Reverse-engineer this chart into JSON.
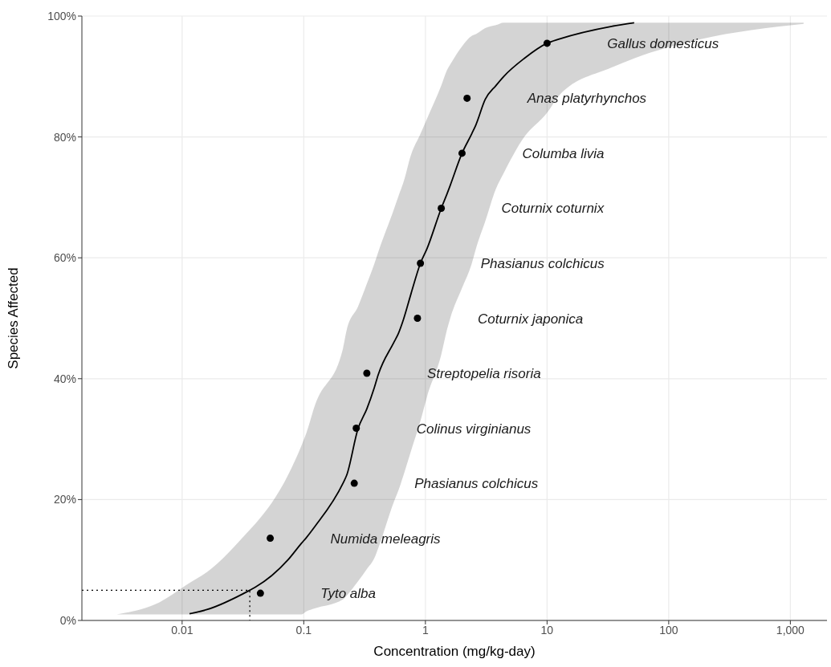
{
  "chart_data": {
    "type": "scatter",
    "xlabel": "Concentration (mg/kg-day)",
    "ylabel": "Species Affected",
    "log": "x",
    "grid": true,
    "legend": false,
    "marker": "circle",
    "xlim": [
      0.0015,
      2000
    ],
    "xticks": [
      0.01,
      0.1,
      1,
      10,
      100,
      {
        "value": 1000,
        "label": "1,000"
      }
    ],
    "ylim": [
      0,
      100
    ],
    "yticks": [
      {
        "value": 0,
        "label": "0%"
      },
      {
        "value": 20,
        "label": "20%"
      },
      {
        "value": 40,
        "label": "40%"
      },
      {
        "value": 60,
        "label": "60%"
      },
      {
        "value": 80,
        "label": "80%"
      },
      {
        "value": 100,
        "label": "100%"
      }
    ],
    "series": [
      {
        "type": "line",
        "color": "#000000",
        "line_style": "solid",
        "marker": "none",
        "x": [
          0.0029,
          0.0065,
          0.0115,
          0.016,
          0.036,
          0.04,
          0.074,
          0.096,
          0.105,
          0.123,
          0.21,
          0.225,
          0.28,
          0.33,
          0.38,
          0.41,
          0.55,
          0.6,
          0.66,
          0.76,
          0.91,
          1.03,
          1.35,
          1.5,
          1.6,
          2.0,
          2.4,
          2.6,
          3.1,
          3.8,
          4.4,
          6.5,
          10,
          12.6,
          34,
          52,
          178,
          1285
        ],
        "values": [
          null,
          null,
          1.1,
          1.8,
          5,
          5.5,
          10,
          12.8,
          13.7,
          15.5,
          22.7,
          24,
          31.8,
          35,
          38.5,
          40.7,
          46,
          47.5,
          49.8,
          54,
          59.1,
          61.5,
          68.2,
          70.5,
          72,
          77.3,
          80.5,
          82,
          86.2,
          88.5,
          90,
          93,
          95.5,
          96.2,
          98.3,
          98.9,
          null,
          null
        ],
        "lower": [
          1,
          1,
          1,
          1,
          1,
          1,
          1,
          1,
          1.5,
          2,
          3.5,
          4.1,
          6.5,
          8.5,
          10.3,
          12,
          19.6,
          21.5,
          24,
          28,
          33,
          37,
          44,
          48,
          50,
          55,
          59,
          61.5,
          66,
          71.4,
          74,
          80,
          84,
          86.9,
          91.5,
          93,
          96.1,
          98.7
        ],
        "upper": [
          1,
          3,
          6.2,
          8,
          15,
          16,
          24,
          29,
          31,
          35.5,
          45,
          48,
          52,
          55.7,
          59,
          61,
          68,
          70.2,
          72.5,
          77,
          80.5,
          83,
          88.5,
          91,
          92,
          95,
          96.7,
          97,
          98,
          98.5,
          98.9,
          98.9,
          98.9,
          98.9,
          98.9,
          98.9,
          98.9,
          98.9
        ]
      },
      {
        "type": "line",
        "color": "#000000",
        "line_style": "dotted",
        "marker": "none",
        "x": [
          0.0015,
          0.036,
          0.036
        ],
        "values": [
          5,
          5,
          0
        ]
      },
      {
        "color": "#000000",
        "x": [
          0.044,
          0.053,
          0.26,
          0.27,
          0.33,
          0.86,
          0.91,
          1.35,
          2.0,
          2.2,
          10
        ],
        "values": [
          4.5,
          13.6,
          22.7,
          31.8,
          40.9,
          50,
          59.1,
          68.2,
          77.3,
          86.4,
          95.5
        ]
      }
    ],
    "annotations": [
      "Tyto alba",
      "Numida meleagris",
      "Phasianus colchicus",
      "Colinus virginianus",
      "Streptopelia risoria",
      "Coturnix japonica",
      "Phasianus colchicus",
      "Coturnix coturnix",
      "Columba livia",
      "Anas platyrhynchos",
      "Gallus domesticus"
    ]
  }
}
